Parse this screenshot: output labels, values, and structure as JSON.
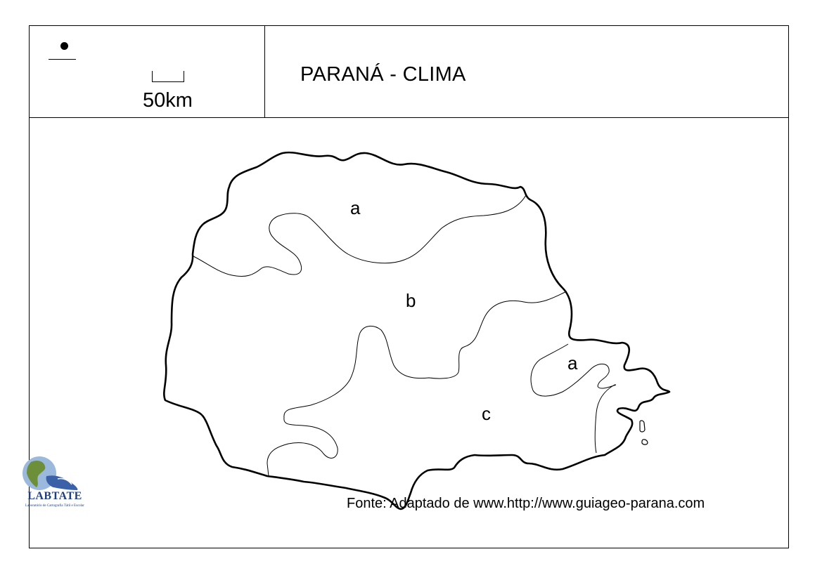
{
  "map": {
    "title": "PARANÁ - CLIMA",
    "scale_label": "50km",
    "source": "Fonte: Adaptado de www.http://www.guiageo-parana.com",
    "region_labels": [
      "a",
      "b",
      "a",
      "c"
    ]
  },
  "logo": {
    "name": "LABTATE",
    "subtitle": "Laboratório de Cartografia Tátil e Escolar",
    "icon": "globe-hand-icon",
    "colors": {
      "ocean": "#9bb8dd",
      "land": "#6e8f3a",
      "hand": "#3b62a8",
      "text": "#1f3f7f"
    }
  }
}
